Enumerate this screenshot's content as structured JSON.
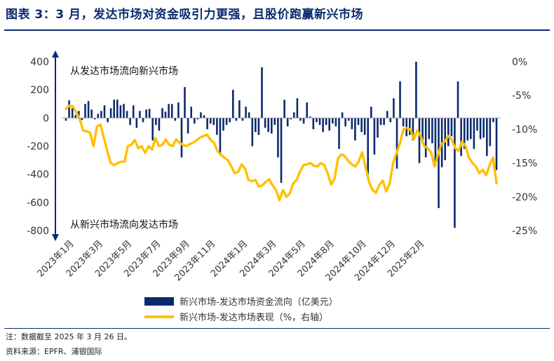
{
  "header": {
    "title": "图表 3：3 月，发达市场对资金吸引力更强，且股价跑赢新兴市场"
  },
  "footer": {
    "note": "注：数据截至 2025 年 3 月 26 日。",
    "source": "资料来源：EPFR、浦银国际"
  },
  "colors": {
    "bar": "#0b2a6e",
    "line": "#ffc000",
    "title": "#0b2a6e",
    "axis": "#7f7f7f",
    "text": "#333333"
  },
  "chart_data": {
    "type": "bar+line",
    "title": "",
    "annotations": {
      "top_arrow_label": "从发达市场流向新兴市场",
      "bottom_arrow_label": "从新兴市场流向发达市场"
    },
    "x_tick_labels": [
      "2023年1月",
      "2023年3月",
      "2023年5月",
      "2023年7月",
      "2023年9月",
      "2023年11月",
      "2024年1月",
      "2024年3月",
      "2024年5月",
      "2024年8月",
      "2024年10月",
      "2024年12月",
      "2025年2月"
    ],
    "x_tick_positions_week_index": [
      0,
      9,
      18,
      27,
      36,
      44,
      54,
      63,
      72,
      81,
      91,
      100,
      109
    ],
    "y_left": {
      "min": -800,
      "max": 400,
      "ticks": [
        400,
        200,
        0,
        -200,
        -400,
        -600,
        -800
      ]
    },
    "y_right": {
      "min": -25,
      "max": 0,
      "ticks": [
        "0%",
        "-5%",
        "-10%",
        "-15%",
        "-20%",
        "-25%"
      ],
      "tick_values": [
        0,
        -5,
        -10,
        -15,
        -20,
        -25
      ]
    },
    "legend": {
      "position": "bottom-center"
    },
    "series": [
      {
        "name": "新兴市场-发达市场资金流向（亿美元）",
        "type": "bar",
        "axis": "left",
        "values": [
          -20,
          125,
          70,
          20,
          50,
          -15,
          100,
          120,
          60,
          -10,
          30,
          50,
          90,
          -30,
          70,
          130,
          130,
          90,
          100,
          50,
          -50,
          90,
          -70,
          50,
          -30,
          60,
          65,
          -160,
          -50,
          -90,
          70,
          45,
          100,
          100,
          -20,
          110,
          -280,
          220,
          -110,
          80,
          -40,
          -10,
          40,
          20,
          -80,
          -40,
          -50,
          -120,
          -250,
          -90,
          -50,
          -30,
          200,
          -20,
          125,
          -20,
          80,
          40,
          -200,
          -100,
          -120,
          360,
          -70,
          -100,
          -110,
          -50,
          -280,
          -460,
          130,
          -60,
          -10,
          40,
          140,
          -20,
          -40,
          110,
          10,
          -80,
          -30,
          -50,
          -100,
          -50,
          -90,
          -40,
          -60,
          -220,
          40,
          -60,
          -20,
          -80,
          -160,
          -50,
          -100,
          -120,
          -400,
          80,
          -260,
          -140,
          -50,
          -50,
          50,
          -30,
          140,
          -360,
          260,
          -60,
          -130,
          -120,
          -160,
          400,
          -320,
          -180,
          -280,
          -150,
          -180,
          -340,
          -640,
          -350,
          -300,
          -200,
          -130,
          -780,
          260,
          -270,
          -220,
          -160,
          -150,
          -220,
          -90,
          -150,
          -140,
          -270,
          -200,
          -30,
          -370
        ]
      },
      {
        "name": "新兴市场-发达市场表现（%，右轴）",
        "type": "line",
        "axis": "right",
        "values": [
          -7.0,
          -6.5,
          -6.6,
          -7.5,
          -8.5,
          -10.2,
          -10.3,
          -10.5,
          -12.5,
          -9.6,
          -9.3,
          -11.2,
          -13.2,
          -15.0,
          -15.3,
          -15.0,
          -14.8,
          -14.8,
          -12.5,
          -12.3,
          -11.6,
          -12.8,
          -12.5,
          -13.5,
          -12.5,
          -13.0,
          -11.3,
          -12.5,
          -12.3,
          -11.5,
          -12.3,
          -12.5,
          -11.5,
          -12.0,
          -12.3,
          -12.5,
          -12.2,
          -12.0,
          -11.6,
          -11.2,
          -11.0,
          -10.8,
          -11.6,
          -12.0,
          -13.2,
          -13.8,
          -14.2,
          -14.6,
          -15.5,
          -16.5,
          -16.3,
          -15.2,
          -15.8,
          -17.5,
          -17.7,
          -17.5,
          -18.5,
          -18.3,
          -17.8,
          -17.4,
          -18.3,
          -19.0,
          -20.5,
          -19.0,
          -20.0,
          -19.5,
          -18.0,
          -17.5,
          -16.2,
          -15.3,
          -15.2,
          -15.0,
          -15.4,
          -15.5,
          -15.0,
          -15.3,
          -16.5,
          -18.2,
          -17.3,
          -14.3,
          -13.7,
          -14.0,
          -14.7,
          -15.2,
          -15.5,
          -14.8,
          -13.4,
          -15.6,
          -17.8,
          -19.0,
          -19.4,
          -18.2,
          -17.6,
          -19.2,
          -18.0,
          -15.0,
          -13.5,
          -12.0,
          -10.0,
          -9.8,
          -10.0,
          -11.5,
          -10.2,
          -11.0,
          -12.5,
          -12.8,
          -13.4,
          -15.5,
          -13.8,
          -12.2,
          -11.8,
          -11.0,
          -11.5,
          -12.8,
          -13.2,
          -11.8,
          -12.5,
          -14.2,
          -15.0,
          -15.5,
          -16.5,
          -16.0,
          -16.8,
          -15.3,
          -14.2,
          -18.0
        ]
      }
    ]
  }
}
